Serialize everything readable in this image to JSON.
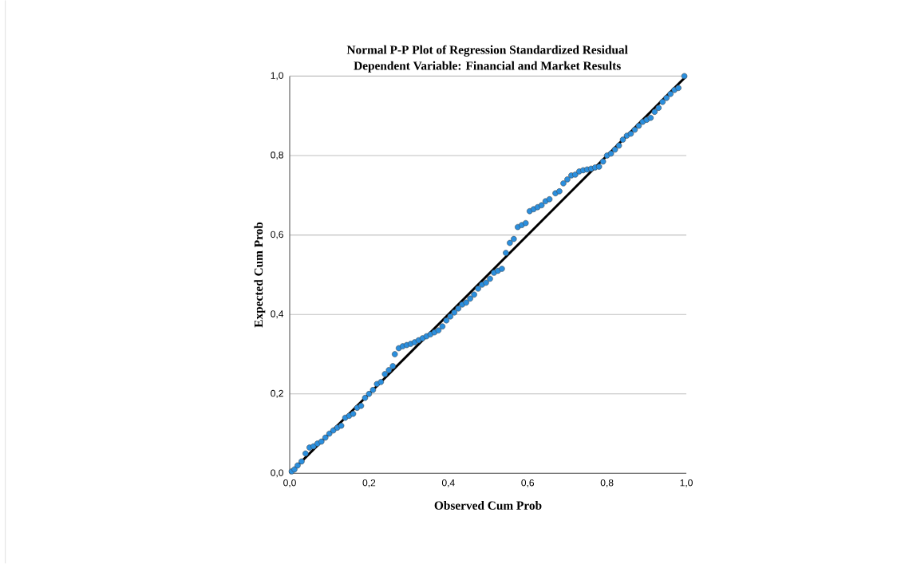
{
  "chart_data": {
    "type": "scatter",
    "title": "Normal P-P Plot of Regression Standardized Residual",
    "subtitle": "Dependent Variable: Financial and Market Results",
    "xlabel": "Observed Cum Prob",
    "ylabel": "Expected Cum Prob",
    "xlim": [
      0,
      1
    ],
    "ylim": [
      0,
      1
    ],
    "xticks": [
      {
        "value": 0,
        "label": "0,0"
      },
      {
        "value": 0.2,
        "label": "0,2"
      },
      {
        "value": 0.4,
        "label": "0,4"
      },
      {
        "value": 0.6,
        "label": "0,6"
      },
      {
        "value": 0.8,
        "label": "0,8"
      },
      {
        "value": 1,
        "label": "1,0"
      }
    ],
    "yticks": [
      {
        "value": 0,
        "label": "0,0"
      },
      {
        "value": 0.2,
        "label": "0,2"
      },
      {
        "value": 0.4,
        "label": "0,4"
      },
      {
        "value": 0.6,
        "label": "0,6"
      },
      {
        "value": 0.8,
        "label": "0,8"
      },
      {
        "value": 1,
        "label": "1,0"
      }
    ],
    "grid": "y",
    "series": [
      {
        "marker": "circle",
        "color": "#2b8fde",
        "x": [
          0.005,
          0.012,
          0.02,
          0.03,
          0.04,
          0.05,
          0.06,
          0.07,
          0.08,
          0.09,
          0.1,
          0.11,
          0.12,
          0.13,
          0.14,
          0.15,
          0.16,
          0.17,
          0.18,
          0.19,
          0.2,
          0.21,
          0.22,
          0.23,
          0.24,
          0.25,
          0.26,
          0.265,
          0.275,
          0.285,
          0.295,
          0.305,
          0.315,
          0.325,
          0.335,
          0.345,
          0.355,
          0.365,
          0.375,
          0.385,
          0.395,
          0.405,
          0.415,
          0.425,
          0.435,
          0.445,
          0.455,
          0.465,
          0.475,
          0.485,
          0.495,
          0.505,
          0.515,
          0.525,
          0.535,
          0.545,
          0.555,
          0.565,
          0.575,
          0.585,
          0.595,
          0.605,
          0.615,
          0.625,
          0.635,
          0.645,
          0.655,
          0.67,
          0.68,
          0.69,
          0.7,
          0.71,
          0.72,
          0.73,
          0.74,
          0.75,
          0.76,
          0.77,
          0.78,
          0.79,
          0.8,
          0.81,
          0.82,
          0.83,
          0.84,
          0.85,
          0.86,
          0.87,
          0.88,
          0.89,
          0.9,
          0.91,
          0.92,
          0.93,
          0.94,
          0.95,
          0.96,
          0.97,
          0.98,
          0.995
        ],
        "values": [
          0.005,
          0.01,
          0.02,
          0.03,
          0.05,
          0.065,
          0.068,
          0.075,
          0.08,
          0.09,
          0.1,
          0.108,
          0.115,
          0.12,
          0.14,
          0.145,
          0.15,
          0.165,
          0.17,
          0.19,
          0.2,
          0.21,
          0.225,
          0.23,
          0.25,
          0.26,
          0.27,
          0.3,
          0.315,
          0.32,
          0.323,
          0.326,
          0.33,
          0.335,
          0.34,
          0.345,
          0.35,
          0.355,
          0.36,
          0.37,
          0.385,
          0.395,
          0.405,
          0.415,
          0.425,
          0.43,
          0.44,
          0.45,
          0.465,
          0.475,
          0.48,
          0.49,
          0.505,
          0.51,
          0.515,
          0.555,
          0.58,
          0.59,
          0.62,
          0.625,
          0.63,
          0.66,
          0.665,
          0.67,
          0.675,
          0.685,
          0.69,
          0.705,
          0.71,
          0.73,
          0.74,
          0.75,
          0.752,
          0.76,
          0.763,
          0.765,
          0.767,
          0.77,
          0.772,
          0.785,
          0.8,
          0.805,
          0.815,
          0.825,
          0.84,
          0.85,
          0.855,
          0.865,
          0.875,
          0.885,
          0.89,
          0.895,
          0.91,
          0.92,
          0.935,
          0.945,
          0.955,
          0.965,
          0.97,
          1.0
        ]
      },
      {
        "type": "line",
        "marker": "none",
        "color": "#000000",
        "x": [
          0,
          1
        ],
        "values": [
          0,
          1
        ]
      }
    ]
  }
}
